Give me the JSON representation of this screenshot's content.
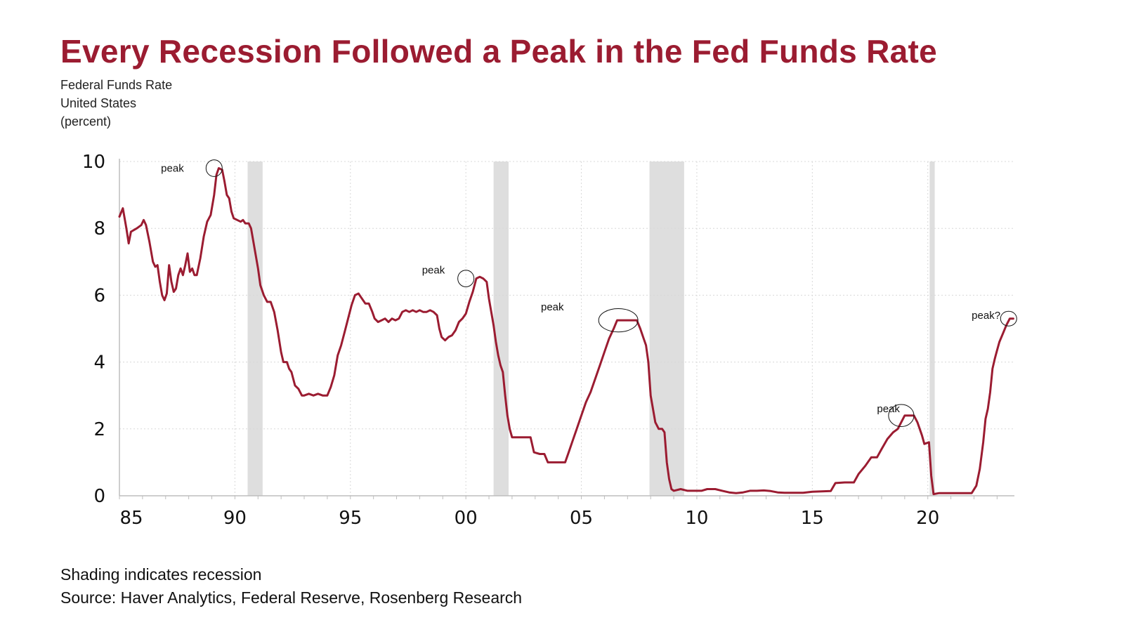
{
  "colors": {
    "title": "#9b1c31",
    "series": "#9b1c31",
    "recession": "#dedede",
    "grid": "#d8d8d8",
    "axis": "#bdbdbd"
  },
  "header": {
    "title": "Every Recession Followed a Peak in the Fed Funds Rate",
    "subtitle": [
      "Federal Funds Rate",
      "United States",
      "(percent)"
    ]
  },
  "footer": {
    "note": "Shading indicates recession",
    "source": "Source: Haver Analytics, Federal Reserve, Rosenberg Research"
  },
  "chart_data": {
    "type": "line",
    "title": "Every Recession Followed a Peak in the Fed Funds Rate",
    "xlabel": "",
    "ylabel": "Federal Funds Rate (percent)",
    "xlim": [
      1985,
      2023.75
    ],
    "ylim": [
      0,
      10
    ],
    "yticks": [
      0,
      2,
      4,
      6,
      8,
      10
    ],
    "ytick_labels": [
      "0",
      "2",
      "4",
      "6",
      "8",
      "10"
    ],
    "xticks": [
      1985,
      1990,
      1995,
      2000,
      2005,
      2010,
      2015,
      2020
    ],
    "xtick_labels": [
      "85",
      "90",
      "95",
      "00",
      "05",
      "10",
      "15",
      "20"
    ],
    "grid": true,
    "recessions": [
      [
        1990.55,
        1991.2
      ],
      [
        2001.2,
        2001.85
      ],
      [
        2007.95,
        2009.45
      ],
      [
        2020.08,
        2020.3
      ]
    ],
    "series": [
      {
        "name": "Federal Funds Rate",
        "points": [
          [
            1985.0,
            8.35
          ],
          [
            1985.15,
            8.6
          ],
          [
            1985.3,
            8.0
          ],
          [
            1985.4,
            7.55
          ],
          [
            1985.5,
            7.9
          ],
          [
            1985.75,
            8.0
          ],
          [
            1985.95,
            8.1
          ],
          [
            1986.05,
            8.25
          ],
          [
            1986.15,
            8.1
          ],
          [
            1986.3,
            7.6
          ],
          [
            1986.45,
            7.0
          ],
          [
            1986.55,
            6.85
          ],
          [
            1986.65,
            6.9
          ],
          [
            1986.75,
            6.4
          ],
          [
            1986.85,
            6.0
          ],
          [
            1986.95,
            5.85
          ],
          [
            1987.05,
            6.05
          ],
          [
            1987.15,
            6.9
          ],
          [
            1987.25,
            6.4
          ],
          [
            1987.35,
            6.1
          ],
          [
            1987.45,
            6.2
          ],
          [
            1987.55,
            6.6
          ],
          [
            1987.65,
            6.8
          ],
          [
            1987.75,
            6.6
          ],
          [
            1987.85,
            6.9
          ],
          [
            1987.95,
            7.25
          ],
          [
            1988.05,
            6.7
          ],
          [
            1988.15,
            6.8
          ],
          [
            1988.25,
            6.6
          ],
          [
            1988.35,
            6.6
          ],
          [
            1988.5,
            7.1
          ],
          [
            1988.65,
            7.75
          ],
          [
            1988.8,
            8.2
          ],
          [
            1988.95,
            8.4
          ],
          [
            1989.1,
            9.0
          ],
          [
            1989.2,
            9.6
          ],
          [
            1989.3,
            9.8
          ],
          [
            1989.45,
            9.75
          ],
          [
            1989.55,
            9.4
          ],
          [
            1989.65,
            9.0
          ],
          [
            1989.75,
            8.9
          ],
          [
            1989.85,
            8.5
          ],
          [
            1989.95,
            8.3
          ],
          [
            1990.1,
            8.25
          ],
          [
            1990.25,
            8.2
          ],
          [
            1990.35,
            8.25
          ],
          [
            1990.45,
            8.15
          ],
          [
            1990.6,
            8.15
          ],
          [
            1990.7,
            8.0
          ],
          [
            1990.8,
            7.6
          ],
          [
            1990.9,
            7.2
          ],
          [
            1991.0,
            6.8
          ],
          [
            1991.1,
            6.3
          ],
          [
            1991.25,
            6.0
          ],
          [
            1991.4,
            5.8
          ],
          [
            1991.55,
            5.8
          ],
          [
            1991.7,
            5.5
          ],
          [
            1991.85,
            4.95
          ],
          [
            1992.0,
            4.3
          ],
          [
            1992.1,
            4.0
          ],
          [
            1992.25,
            4.0
          ],
          [
            1992.35,
            3.8
          ],
          [
            1992.45,
            3.7
          ],
          [
            1992.6,
            3.3
          ],
          [
            1992.75,
            3.2
          ],
          [
            1992.9,
            3.0
          ],
          [
            1993.0,
            3.0
          ],
          [
            1993.2,
            3.05
          ],
          [
            1993.4,
            3.0
          ],
          [
            1993.6,
            3.05
          ],
          [
            1993.8,
            3.0
          ],
          [
            1994.0,
            3.0
          ],
          [
            1994.15,
            3.25
          ],
          [
            1994.3,
            3.6
          ],
          [
            1994.45,
            4.2
          ],
          [
            1994.6,
            4.5
          ],
          [
            1994.75,
            4.9
          ],
          [
            1994.9,
            5.3
          ],
          [
            1995.05,
            5.7
          ],
          [
            1995.2,
            6.0
          ],
          [
            1995.35,
            6.05
          ],
          [
            1995.5,
            5.9
          ],
          [
            1995.65,
            5.75
          ],
          [
            1995.8,
            5.75
          ],
          [
            1995.95,
            5.5
          ],
          [
            1996.05,
            5.3
          ],
          [
            1996.2,
            5.2
          ],
          [
            1996.35,
            5.25
          ],
          [
            1996.5,
            5.3
          ],
          [
            1996.65,
            5.2
          ],
          [
            1996.8,
            5.3
          ],
          [
            1996.95,
            5.25
          ],
          [
            1997.1,
            5.3
          ],
          [
            1997.25,
            5.5
          ],
          [
            1997.4,
            5.55
          ],
          [
            1997.55,
            5.5
          ],
          [
            1997.7,
            5.55
          ],
          [
            1997.85,
            5.5
          ],
          [
            1998.0,
            5.55
          ],
          [
            1998.15,
            5.5
          ],
          [
            1998.3,
            5.5
          ],
          [
            1998.45,
            5.55
          ],
          [
            1998.6,
            5.5
          ],
          [
            1998.75,
            5.4
          ],
          [
            1998.85,
            5.0
          ],
          [
            1998.95,
            4.75
          ],
          [
            1999.1,
            4.65
          ],
          [
            1999.25,
            4.75
          ],
          [
            1999.4,
            4.8
          ],
          [
            1999.55,
            4.95
          ],
          [
            1999.7,
            5.2
          ],
          [
            1999.85,
            5.3
          ],
          [
            2000.0,
            5.45
          ],
          [
            2000.15,
            5.8
          ],
          [
            2000.3,
            6.1
          ],
          [
            2000.45,
            6.5
          ],
          [
            2000.6,
            6.55
          ],
          [
            2000.75,
            6.5
          ],
          [
            2000.9,
            6.4
          ],
          [
            2001.0,
            5.9
          ],
          [
            2001.1,
            5.5
          ],
          [
            2001.2,
            5.1
          ],
          [
            2001.3,
            4.6
          ],
          [
            2001.4,
            4.2
          ],
          [
            2001.5,
            3.9
          ],
          [
            2001.6,
            3.7
          ],
          [
            2001.7,
            3.0
          ],
          [
            2001.8,
            2.4
          ],
          [
            2001.9,
            2.0
          ],
          [
            2002.0,
            1.75
          ],
          [
            2002.2,
            1.75
          ],
          [
            2002.4,
            1.75
          ],
          [
            2002.6,
            1.75
          ],
          [
            2002.8,
            1.75
          ],
          [
            2002.95,
            1.3
          ],
          [
            2003.2,
            1.25
          ],
          [
            2003.4,
            1.25
          ],
          [
            2003.55,
            1.0
          ],
          [
            2003.8,
            1.0
          ],
          [
            2004.0,
            1.0
          ],
          [
            2004.3,
            1.0
          ],
          [
            2004.45,
            1.3
          ],
          [
            2004.6,
            1.6
          ],
          [
            2004.8,
            2.0
          ],
          [
            2005.0,
            2.4
          ],
          [
            2005.2,
            2.8
          ],
          [
            2005.4,
            3.1
          ],
          [
            2005.6,
            3.5
          ],
          [
            2005.8,
            3.9
          ],
          [
            2006.0,
            4.3
          ],
          [
            2006.2,
            4.7
          ],
          [
            2006.4,
            5.0
          ],
          [
            2006.55,
            5.25
          ],
          [
            2006.8,
            5.25
          ],
          [
            2007.0,
            5.25
          ],
          [
            2007.2,
            5.25
          ],
          [
            2007.4,
            5.25
          ],
          [
            2007.55,
            5.0
          ],
          [
            2007.7,
            4.7
          ],
          [
            2007.8,
            4.5
          ],
          [
            2007.9,
            4.0
          ],
          [
            2008.0,
            3.0
          ],
          [
            2008.1,
            2.6
          ],
          [
            2008.2,
            2.2
          ],
          [
            2008.35,
            2.0
          ],
          [
            2008.5,
            2.0
          ],
          [
            2008.6,
            1.9
          ],
          [
            2008.7,
            1.0
          ],
          [
            2008.8,
            0.5
          ],
          [
            2008.9,
            0.2
          ],
          [
            2009.0,
            0.15
          ],
          [
            2009.3,
            0.2
          ],
          [
            2009.6,
            0.15
          ],
          [
            2009.9,
            0.15
          ],
          [
            2010.2,
            0.15
          ],
          [
            2010.45,
            0.2
          ],
          [
            2010.8,
            0.2
          ],
          [
            2011.1,
            0.15
          ],
          [
            2011.4,
            0.1
          ],
          [
            2011.7,
            0.08
          ],
          [
            2012.0,
            0.1
          ],
          [
            2012.3,
            0.15
          ],
          [
            2012.6,
            0.15
          ],
          [
            2012.9,
            0.16
          ],
          [
            2013.2,
            0.14
          ],
          [
            2013.5,
            0.1
          ],
          [
            2013.8,
            0.09
          ],
          [
            2014.2,
            0.09
          ],
          [
            2014.6,
            0.09
          ],
          [
            2015.0,
            0.12
          ],
          [
            2015.4,
            0.13
          ],
          [
            2015.8,
            0.14
          ],
          [
            2016.0,
            0.38
          ],
          [
            2016.4,
            0.4
          ],
          [
            2016.8,
            0.4
          ],
          [
            2017.0,
            0.65
          ],
          [
            2017.3,
            0.9
          ],
          [
            2017.55,
            1.15
          ],
          [
            2017.8,
            1.15
          ],
          [
            2018.0,
            1.4
          ],
          [
            2018.25,
            1.7
          ],
          [
            2018.5,
            1.9
          ],
          [
            2018.7,
            2.0
          ],
          [
            2018.85,
            2.2
          ],
          [
            2019.0,
            2.4
          ],
          [
            2019.2,
            2.4
          ],
          [
            2019.4,
            2.4
          ],
          [
            2019.55,
            2.2
          ],
          [
            2019.65,
            2.0
          ],
          [
            2019.75,
            1.8
          ],
          [
            2019.85,
            1.55
          ],
          [
            2020.05,
            1.6
          ],
          [
            2020.15,
            0.6
          ],
          [
            2020.25,
            0.05
          ],
          [
            2020.5,
            0.08
          ],
          [
            2021.0,
            0.08
          ],
          [
            2021.5,
            0.08
          ],
          [
            2021.9,
            0.08
          ],
          [
            2022.1,
            0.3
          ],
          [
            2022.25,
            0.8
          ],
          [
            2022.4,
            1.6
          ],
          [
            2022.5,
            2.3
          ],
          [
            2022.6,
            2.6
          ],
          [
            2022.7,
            3.1
          ],
          [
            2022.8,
            3.8
          ],
          [
            2022.9,
            4.1
          ],
          [
            2023.0,
            4.35
          ],
          [
            2023.1,
            4.6
          ],
          [
            2023.25,
            4.85
          ],
          [
            2023.4,
            5.1
          ],
          [
            2023.55,
            5.3
          ],
          [
            2023.7,
            5.3
          ]
        ]
      }
    ],
    "annotations": [
      {
        "label": "peak",
        "x": 1989.1,
        "y": 9.8,
        "rx": 0.35,
        "ry": 0.25,
        "label_dx": -2.3,
        "label_dy": 0
      },
      {
        "label": "peak",
        "x": 2000.0,
        "y": 6.5,
        "rx": 0.35,
        "ry": 0.25,
        "label_dx": -1.9,
        "label_dy": 0.25
      },
      {
        "label": "peak",
        "x": 2006.6,
        "y": 5.25,
        "rx": 0.85,
        "ry": 0.35,
        "label_dx": -3.35,
        "label_dy": 0.4
      },
      {
        "label": "peak",
        "x": 2018.85,
        "y": 2.4,
        "rx": 0.55,
        "ry": 0.33,
        "label_dx": -1.05,
        "label_dy": 0.2
      },
      {
        "label": "peak?",
        "x": 2023.5,
        "y": 5.3,
        "rx": 0.35,
        "ry": 0.22,
        "label_dx": -1.6,
        "label_dy": 0.1
      }
    ]
  }
}
